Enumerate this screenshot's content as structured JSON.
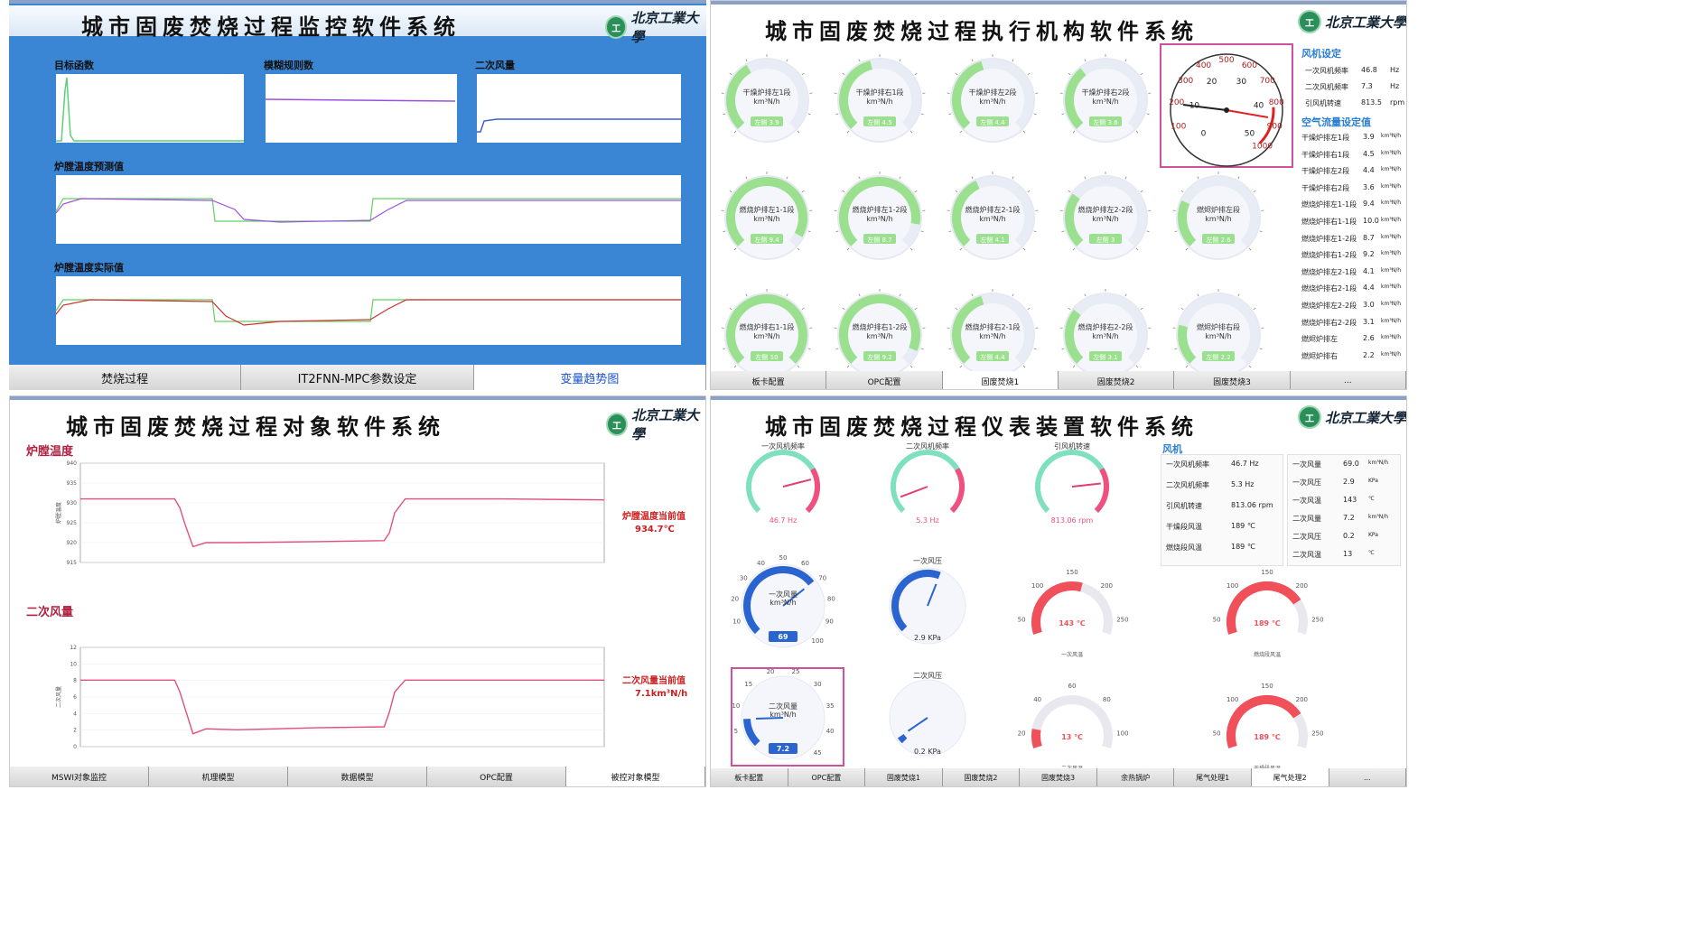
{
  "colors": {
    "blue_bg": "#3a86d4",
    "green": "#9be08f",
    "pink_line": "#e0507a",
    "purple_line": "#9b4fe0",
    "red_gauge": "#f0505a",
    "blue_gauge": "#2a64d0",
    "accent_text": "#2a7fd0",
    "value_red": "#cc2020"
  },
  "q1": {
    "title": "城市固废焚烧过程监控软件系统",
    "charts": [
      {
        "label": "目标函数"
      },
      {
        "label": "模糊规则数"
      },
      {
        "label": "二次风量"
      },
      {
        "label": "炉膛温度预测值"
      },
      {
        "label": "炉膛温度实际值"
      }
    ],
    "tabs": [
      "焚烧过程",
      "IT2FNN-MPC参数设定",
      "变量趋势图"
    ]
  },
  "q2": {
    "title": "城市固废焚烧过程执行机构软件系统",
    "gauges": [
      {
        "label": "干燥炉排左1段",
        "value": "左侧 3.9",
        "level": 0.39
      },
      {
        "label": "干燥炉排右1段",
        "value": "左侧 4.5",
        "level": 0.45
      },
      {
        "label": "干燥炉排左2段",
        "value": "左侧 4.4",
        "level": 0.44
      },
      {
        "label": "干燥炉排右2段",
        "value": "左侧 3.6",
        "level": 0.36
      },
      {
        "label": "燃烧炉排左1-1段",
        "value": "左侧 9.4",
        "level": 0.94
      },
      {
        "label": "燃烧炉排左1-2段",
        "value": "左侧 8.7",
        "level": 0.87
      },
      {
        "label": "燃烧炉排左2-1段",
        "value": "左侧 4.1",
        "level": 0.41
      },
      {
        "label": "燃烧炉排左2-2段",
        "value": "左侧 3",
        "level": 0.3
      },
      {
        "label": "燃烬炉排左段",
        "value": "左侧 2.6",
        "level": 0.26
      },
      {
        "label": "燃烧炉排右1-1段",
        "value": "左侧 10",
        "level": 1.0
      },
      {
        "label": "燃烧炉排右1-2段",
        "value": "左侧 9.2",
        "level": 0.92
      },
      {
        "label": "燃烧炉排右2-1段",
        "value": "左侧 4.4",
        "level": 0.44
      },
      {
        "label": "燃烧炉排右2-2段",
        "value": "左侧 3.1",
        "level": 0.31
      },
      {
        "label": "燃烬炉排右段",
        "value": "左侧 2.2",
        "level": 0.22
      }
    ],
    "gauge_unit": "km³N/h",
    "big_gauge": {
      "outer_ticks": [
        "100",
        "200",
        "300",
        "400",
        "500",
        "600",
        "700",
        "800",
        "900",
        "1000"
      ],
      "inner_ticks": [
        "0",
        "10",
        "20",
        "30",
        "40",
        "50"
      ]
    },
    "fan_section": "风机设定",
    "fans": [
      {
        "name": "一次风机频率",
        "value": "46.8",
        "unit": "Hz"
      },
      {
        "name": "二次风机频率",
        "value": "7.3",
        "unit": "Hz"
      },
      {
        "name": "引风机转速",
        "value": "813.5",
        "unit": "rpm"
      }
    ],
    "air_section": "空气流量设定值",
    "air": [
      {
        "name": "干燥炉排左1段",
        "value": "3.9"
      },
      {
        "name": "干燥炉排右1段",
        "value": "4.5"
      },
      {
        "name": "干燥炉排左2段",
        "value": "4.4"
      },
      {
        "name": "干燥炉排右2段",
        "value": "3.6"
      },
      {
        "name": "燃烧炉排左1-1段",
        "value": "9.4"
      },
      {
        "name": "燃烧炉排右1-1段",
        "value": "10.0"
      },
      {
        "name": "燃烧炉排左1-2段",
        "value": "8.7"
      },
      {
        "name": "燃烧炉排右1-2段",
        "value": "9.2"
      },
      {
        "name": "燃烧炉排左2-1段",
        "value": "4.1"
      },
      {
        "name": "燃烧炉排右2-1段",
        "value": "4.4"
      },
      {
        "name": "燃烧炉排左2-2段",
        "value": "3.0"
      },
      {
        "name": "燃烧炉排右2-2段",
        "value": "3.1"
      },
      {
        "name": "燃烬炉排左",
        "value": "2.6"
      },
      {
        "name": "燃烬炉排右",
        "value": "2.2"
      }
    ],
    "air_unit": "km³N/h",
    "tabs": [
      "板卡配置",
      "OPC配置",
      "固废焚烧1",
      "固废焚烧2",
      "固废焚烧3",
      "..."
    ]
  },
  "q3": {
    "title": "城市固废焚烧过程对象软件系统",
    "charts": [
      {
        "label": "炉膛温度",
        "side_label": "炉膛温度当前值",
        "side_value": "934.7℃",
        "y_ticks": [
          "940",
          "935",
          "930",
          "925",
          "920",
          "915"
        ],
        "yaxis": "炉膛温度"
      },
      {
        "label": "二次风量",
        "side_label": "二次风量当前值",
        "side_value": "7.1km³N/h",
        "y_ticks": [
          "12",
          "10",
          "8",
          "6",
          "4",
          "2",
          "0"
        ],
        "yaxis": "二次风量"
      }
    ],
    "tabs": [
      "MSWI对象监控",
      "机理模型",
      "数据模型",
      "OPC配置",
      "被控对象模型"
    ]
  },
  "q4": {
    "title": "城市固废焚烧过程仪表装置软件系统",
    "fan_section": "风机",
    "fans": [
      {
        "name": "一次风机频率",
        "value": "46.7",
        "unit": "Hz"
      },
      {
        "name": "二次风机频率",
        "value": "5.3",
        "unit": "Hz"
      },
      {
        "name": "引风机转速",
        "value": "813.06",
        "unit": "rpm"
      },
      {
        "name": "干燥段风温",
        "value": "189",
        "unit": "℃"
      },
      {
        "name": "燃烧段风温",
        "value": "189",
        "unit": "℃"
      }
    ],
    "air": [
      {
        "name": "一次风量",
        "value": "69.0",
        "unit": "km³N/h"
      },
      {
        "name": "一次风压",
        "value": "2.9",
        "unit": "KPa"
      },
      {
        "name": "一次风温",
        "value": "143",
        "unit": "℃"
      },
      {
        "name": "二次风量",
        "value": "7.2",
        "unit": "km³N/h"
      },
      {
        "name": "二次风压",
        "value": "0.2",
        "unit": "KPa"
      },
      {
        "name": "二次风温",
        "value": "13",
        "unit": "℃"
      }
    ],
    "gauges_top": [
      {
        "label": "一次风机频率",
        "value": "46.7 Hz",
        "level": 0.78
      },
      {
        "label": "二次风机频率",
        "value": "5.3 Hz",
        "level": 0.09
      },
      {
        "label": "引风机转速",
        "value": "813.06 rpm",
        "level": 0.81
      }
    ],
    "flow1": {
      "ticks": [
        "10",
        "20",
        "30",
        "40",
        "50",
        "60",
        "70",
        "80",
        "90",
        "100"
      ],
      "label": "一次风量",
      "unit": "km³N/h",
      "value": "69",
      "level": 0.69
    },
    "press1": {
      "label": "一次风压",
      "value": "2.9 KPa",
      "level": 0.58
    },
    "temp1": {
      "ticks": [
        "50",
        "100",
        "150",
        "200",
        "250"
      ],
      "value": "143 ℃",
      "caption": "一次风温",
      "level": 0.57
    },
    "temp2": {
      "ticks": [
        "50",
        "100",
        "150",
        "200",
        "250"
      ],
      "value": "189 ℃",
      "caption": "燃烧段风温",
      "level": 0.76
    },
    "flow2": {
      "ticks": [
        "5",
        "10",
        "15",
        "20",
        "25",
        "30",
        "35",
        "40",
        "45"
      ],
      "label": "二次风量",
      "unit": "km³N/h",
      "value": "7.2",
      "level": 0.16
    },
    "press2": {
      "label": "二次风压",
      "value": "0.2 KPa",
      "level": 0.04
    },
    "temp3": {
      "ticks": [
        "20",
        "40",
        "60",
        "80",
        "100"
      ],
      "value": "13 ℃",
      "caption": "二次风温",
      "level": 0.13
    },
    "temp4": {
      "ticks": [
        "50",
        "100",
        "150",
        "200",
        "250"
      ],
      "value": "189 ℃",
      "caption": "干燥段风温",
      "level": 0.76
    },
    "tabs": [
      "板卡配置",
      "OPC配置",
      "固废焚烧1",
      "固废焚烧2",
      "固废焚烧3",
      "余热锅炉",
      "尾气处理1",
      "尾气处理2",
      "..."
    ]
  }
}
